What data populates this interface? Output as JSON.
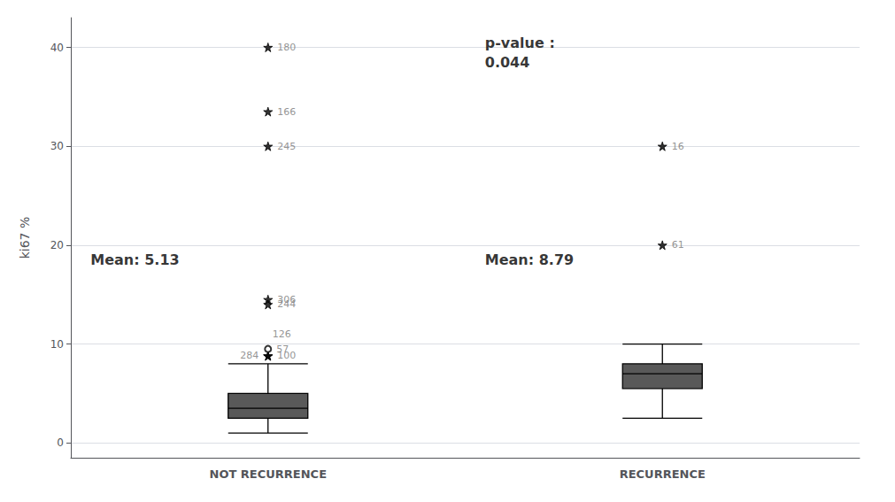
{
  "chart_data": {
    "type": "boxplot",
    "categories": [
      "NOT RECURRENCE",
      "RECURRENCE"
    ],
    "ylabel": "ki67 %",
    "ylim": [
      -1.5,
      43
    ],
    "yticks": [
      0,
      10,
      20,
      30,
      40
    ],
    "grid": true,
    "color": "#595959",
    "boxes": [
      {
        "category": "NOT RECURRENCE",
        "q1": 2.5,
        "median": 3.5,
        "q3": 5.0,
        "whisker_low": 1.0,
        "whisker_high": 8.0,
        "fliers": [
          {
            "y": 8.8,
            "label": "284",
            "marker": "star"
          },
          {
            "y": 8.8,
            "label": "100",
            "marker": "star"
          },
          {
            "y": 14.5,
            "label": "306",
            "marker": "star"
          },
          {
            "y": 14.0,
            "label": "244",
            "marker": "star"
          },
          {
            "y": 30.0,
            "label": "245",
            "marker": "star"
          },
          {
            "y": 33.5,
            "label": "166",
            "marker": "star"
          },
          {
            "y": 40.0,
            "label": "180",
            "marker": "star"
          },
          {
            "y": 9.5,
            "label": "57",
            "marker": "circle"
          },
          {
            "y": 11.0,
            "label": "126",
            "marker": "none"
          }
        ]
      },
      {
        "category": "RECURRENCE",
        "q1": 5.5,
        "median": 7.0,
        "q3": 8.0,
        "whisker_low": 2.5,
        "whisker_high": 10.0,
        "fliers": [
          {
            "y": 20.0,
            "label": "61",
            "marker": "star"
          },
          {
            "y": 30.0,
            "label": "16",
            "marker": "star"
          }
        ]
      }
    ],
    "annotations": [
      {
        "text": "Mean: 5.13",
        "category": "NOT RECURRENCE",
        "y": 18.5
      },
      {
        "text": "Mean: 8.79",
        "category": "RECURRENCE",
        "y": 18.5
      },
      {
        "text": "p-value :\n0.044",
        "category": "RECURRENCE",
        "y": 39.5
      }
    ]
  }
}
